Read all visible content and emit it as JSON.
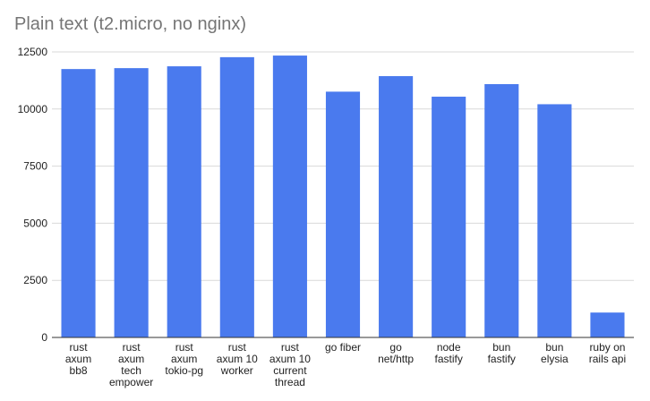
{
  "chart_data": {
    "type": "bar",
    "title": "Plain text (t2.micro, no nginx)",
    "xlabel": "",
    "ylabel": "",
    "ylim": [
      0,
      12500
    ],
    "yticks": [
      0,
      2500,
      5000,
      7500,
      10000,
      12500
    ],
    "grid": true,
    "legend": "none",
    "bar_color": "#4a7aee",
    "categories": [
      [
        "rust",
        "axum",
        "bb8"
      ],
      [
        "rust",
        "axum",
        "tech",
        "empower"
      ],
      [
        "rust",
        "axum",
        "tokio-pg"
      ],
      [
        "rust",
        "axum 10",
        "worker"
      ],
      [
        "rust",
        "axum 10",
        "current",
        "thread"
      ],
      [
        "go fiber"
      ],
      [
        "go",
        "net/http"
      ],
      [
        "node",
        "fastify"
      ],
      [
        "bun",
        "fastify"
      ],
      [
        "bun",
        "elysia"
      ],
      [
        "ruby on",
        "rails api"
      ]
    ],
    "values": [
      11750,
      11790,
      11870,
      12270,
      12340,
      10760,
      11440,
      10540,
      11090,
      10210,
      1090
    ]
  }
}
